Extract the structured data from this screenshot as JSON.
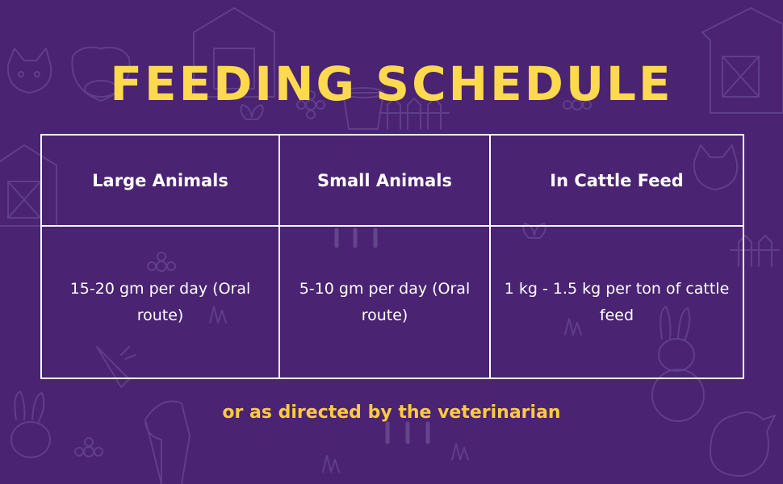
{
  "colors": {
    "background": "#4a2373",
    "title": "#fdd94e",
    "note": "#fbcb42",
    "text": "#ffffff"
  },
  "title": "FEEDING SCHEDULE",
  "table": {
    "headers": [
      "Large Animals",
      "Small Animals",
      "In Cattle Feed"
    ],
    "rows": [
      [
        "15-20 gm per day (Oral route)",
        "5-10 gm per day (Oral route)",
        "1 kg - 1.5 kg per ton of cattle feed"
      ]
    ]
  },
  "note": "or as directed by the veterinarian"
}
